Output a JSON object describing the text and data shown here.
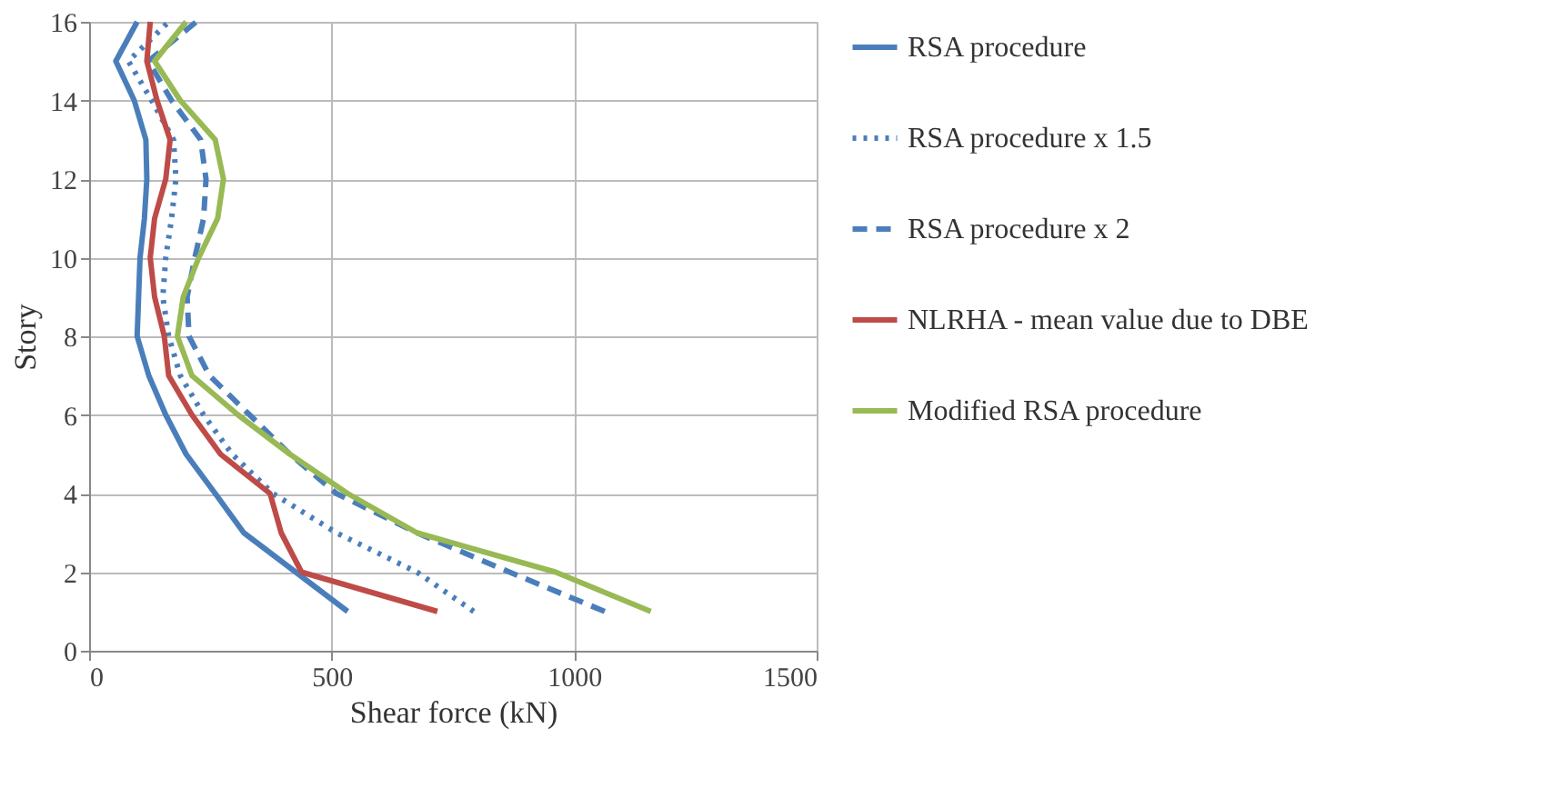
{
  "chart_data": {
    "type": "line",
    "xlabel": "Shear force (kN)",
    "ylabel": "Story",
    "xlim": [
      0,
      1500
    ],
    "xticks": [
      0,
      500,
      1000,
      1500
    ],
    "ylim": [
      0,
      16
    ],
    "yticks": [
      0,
      2,
      4,
      6,
      8,
      10,
      12,
      14,
      16
    ],
    "grid": true,
    "legend": "right",
    "marker": "none",
    "series": [
      {
        "name": "RSA procedure",
        "color": "#4a7ebb",
        "line_style": "solid",
        "x": [
          533,
          426,
          319,
          260,
          200,
          158,
          123,
          99,
          102,
          105,
          114,
          119,
          117,
          93,
          55,
          99
        ],
        "values": [
          1,
          2,
          3,
          4,
          5,
          6,
          7,
          8,
          9,
          10,
          11,
          12,
          13,
          14,
          15,
          16
        ]
      },
      {
        "name": "RSA procedure x 1.5",
        "color": "#4a7ebb",
        "line_style": "dotted",
        "x": [
          793,
          676,
          510,
          379,
          295,
          236,
          188,
          164,
          152,
          158,
          170,
          179,
          174,
          129,
          81,
          164
        ],
        "values": [
          1,
          2,
          3,
          4,
          5,
          6,
          7,
          8,
          9,
          10,
          11,
          12,
          13,
          14,
          15,
          16
        ]
      },
      {
        "name": "RSA procedure x 2",
        "color": "#4a7ebb",
        "line_style": "dashed",
        "x": [
          1063,
          867,
          676,
          510,
          414,
          331,
          248,
          206,
          202,
          218,
          236,
          241,
          230,
          170,
          122,
          221
        ],
        "values": [
          1,
          2,
          3,
          4,
          5,
          6,
          7,
          8,
          9,
          10,
          11,
          12,
          13,
          14,
          15,
          16
        ]
      },
      {
        "name": "NLRHA - mean value due to DBE",
        "color": "#be4b48",
        "line_style": "solid",
        "x": [
          718,
          438,
          396,
          373,
          271,
          212,
          164,
          155,
          135,
          126,
          135,
          158,
          167,
          140,
          119,
          126
        ],
        "values": [
          1,
          2,
          3,
          4,
          5,
          6,
          7,
          8,
          9,
          10,
          11,
          12,
          13,
          14,
          15,
          16
        ]
      },
      {
        "name": "Modified RSA procedure",
        "color": "#98b954",
        "line_style": "solid",
        "x": [
          1158,
          962,
          676,
          533,
          414,
          307,
          212,
          182,
          194,
          226,
          265,
          277,
          260,
          188,
          135,
          200
        ],
        "values": [
          1,
          2,
          3,
          4,
          5,
          6,
          7,
          8,
          9,
          10,
          11,
          12,
          13,
          14,
          15,
          16
        ]
      }
    ]
  }
}
